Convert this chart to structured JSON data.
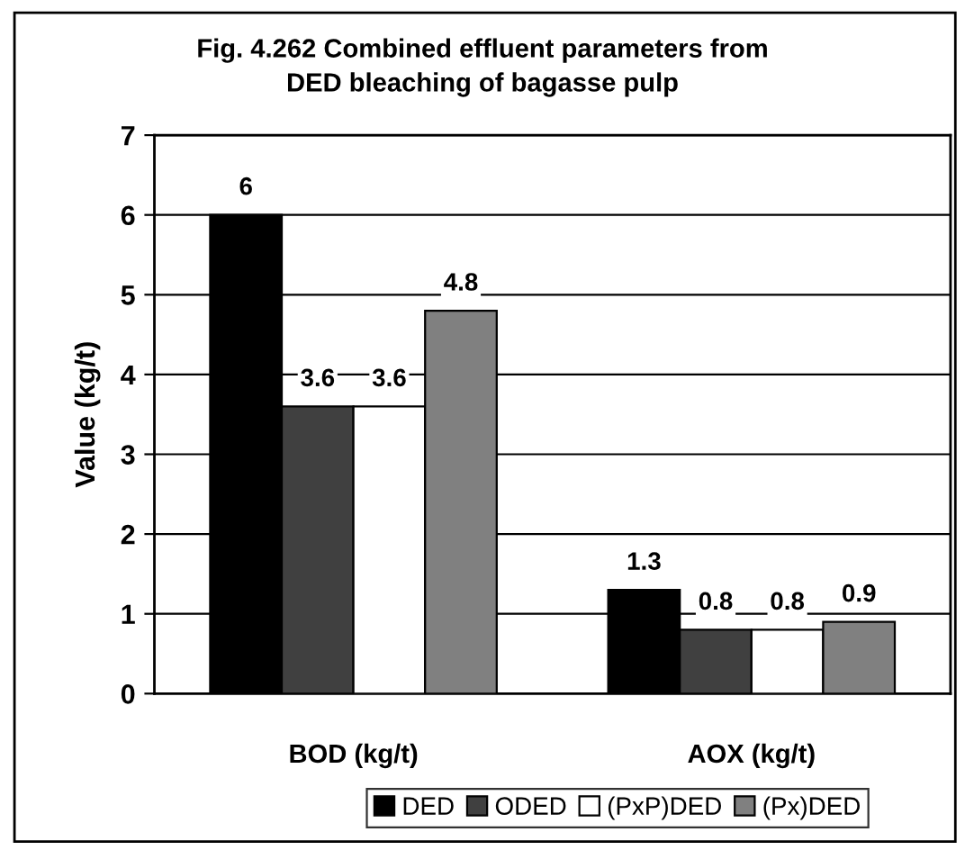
{
  "chart_data": {
    "type": "bar",
    "title": "Fig. 4.262 Combined effluent parameters from\nDED bleaching of bagasse pulp",
    "categories": [
      "BOD (kg/t)",
      "AOX (kg/t)"
    ],
    "ylabel": "Value (kg/t)",
    "series": [
      {
        "name": "DED",
        "color": "#000000",
        "values": [
          6,
          1.3
        ]
      },
      {
        "name": "ODED",
        "color": "#404040",
        "values": [
          3.6,
          0.8
        ]
      },
      {
        "name": "(PxP)DED",
        "color": "#ffffff",
        "values": [
          3.6,
          0.8
        ]
      },
      {
        "name": "(Px)DED",
        "color": "#808080",
        "values": [
          4.8,
          0.9
        ]
      }
    ],
    "ylim": [
      0,
      7
    ],
    "yticks": [
      0,
      1,
      2,
      3,
      4,
      5,
      6,
      7
    ],
    "grid": "y",
    "legend": "bottom",
    "data_labels": true
  }
}
